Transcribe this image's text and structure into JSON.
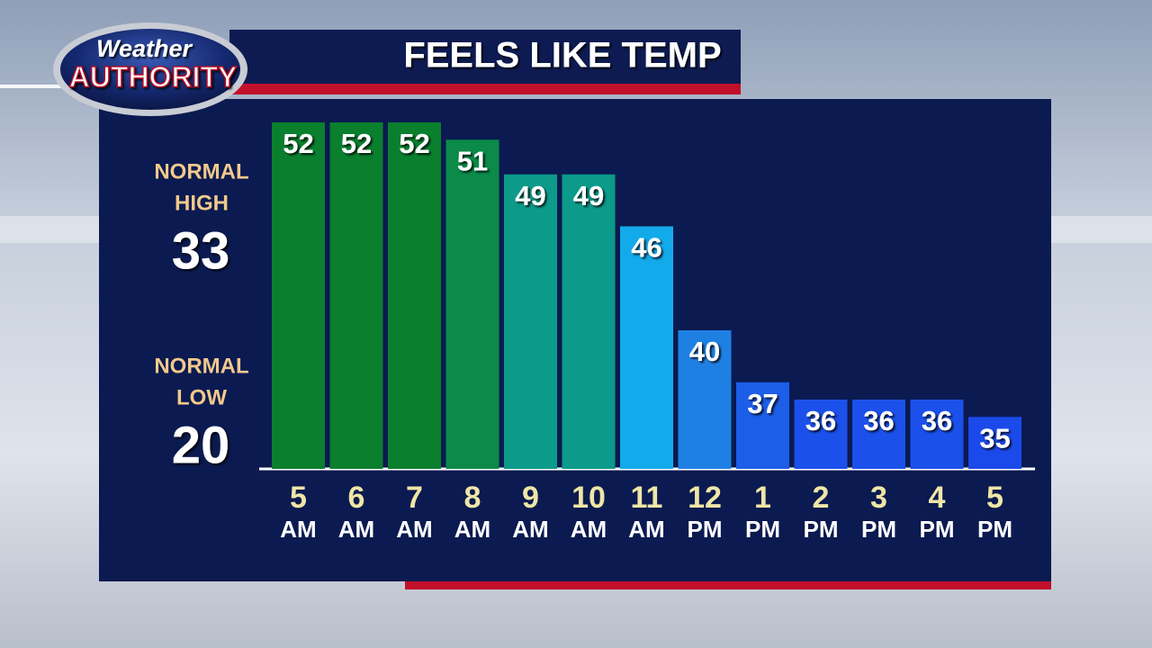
{
  "logo": {
    "top": "Weather",
    "bottom": "AUTHORITY"
  },
  "normals": [
    {
      "label": [
        "NORMAL",
        "HIGH"
      ],
      "value": 33
    },
    {
      "label": [
        "NORMAL",
        "LOW"
      ],
      "value": 20
    }
  ],
  "chart_data": {
    "type": "bar",
    "title": "FEELS LIKE TEMP",
    "categories": [
      "5",
      "6",
      "7",
      "8",
      "9",
      "10",
      "11",
      "12",
      "1",
      "2",
      "3",
      "4",
      "5"
    ],
    "category_periods": [
      "AM",
      "AM",
      "AM",
      "AM",
      "AM",
      "AM",
      "AM",
      "PM",
      "PM",
      "PM",
      "PM",
      "PM",
      "PM"
    ],
    "values": [
      52,
      52,
      52,
      51,
      49,
      49,
      46,
      40,
      37,
      36,
      36,
      36,
      35
    ],
    "colors": [
      "#0a7f2e",
      "#0a7f2e",
      "#0a7f2e",
      "#0b8a48",
      "#0c9a8a",
      "#0c9a8a",
      "#12aaea",
      "#1f80e4",
      "#1c5ee8",
      "#1b50ea",
      "#1b50ea",
      "#1b50ea",
      "#1b4aea"
    ],
    "ylim": [
      32,
      52
    ]
  }
}
